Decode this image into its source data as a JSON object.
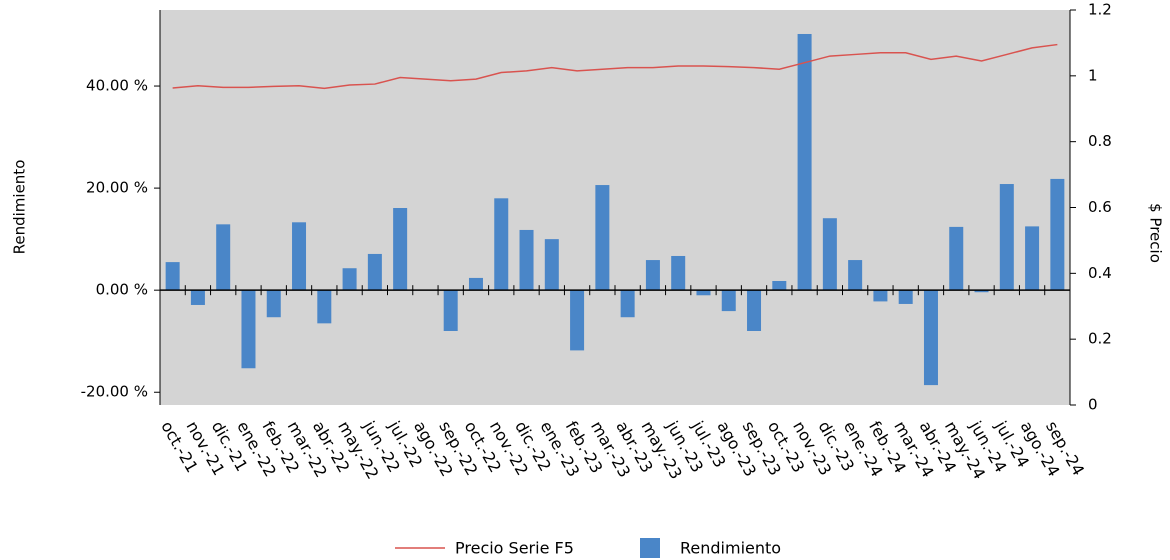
{
  "chart_data": {
    "type": "bar-line",
    "y_label": "Rendimiento",
    "y2_label": "$ Precio",
    "categories": [
      "oct.-21",
      "nov.-21",
      "dic.-21",
      "ene.-22",
      "feb.-22",
      "mar.-22",
      "abr.-22",
      "may.-22",
      "jun.-22",
      "jul.-22",
      "ago.-22",
      "sep.-22",
      "oct.-22",
      "nov.-22",
      "dic.-22",
      "ene.-23",
      "feb.-23",
      "mar.-23",
      "abr.-23",
      "may.-23",
      "jun.-23",
      "jul.-23",
      "ago.-23",
      "sep.-23",
      "oct.-23",
      "nov.-23",
      "dic.-23",
      "ene.-24",
      "feb.-24",
      "mar.-24",
      "abr.-24",
      "may.-24",
      "jun.-24",
      "jul.-24",
      "ago.-24",
      "sep.-24"
    ],
    "series": [
      {
        "name": "Precio Serie F5",
        "type": "line",
        "axis": "y2",
        "color": "#d9534f",
        "values": [
          0.963,
          0.97,
          0.965,
          0.965,
          0.968,
          0.97,
          0.962,
          0.972,
          0.975,
          0.995,
          0.99,
          0.985,
          0.99,
          1.01,
          1.015,
          1.025,
          1.015,
          1.02,
          1.025,
          1.025,
          1.03,
          1.03,
          1.028,
          1.025,
          1.02,
          1.04,
          1.06,
          1.065,
          1.07,
          1.07,
          1.05,
          1.06,
          1.045,
          1.065,
          1.085,
          1.095
        ]
      },
      {
        "name": "Rendimiento",
        "type": "bar",
        "color": "#4a86c8",
        "values": [
          5.5,
          -2.9,
          12.9,
          -15.3,
          -5.3,
          13.3,
          -6.5,
          4.3,
          7.1,
          16.1,
          0,
          -8.0,
          2.4,
          18.0,
          11.8,
          10.0,
          -11.8,
          20.6,
          -5.3,
          5.9,
          6.7,
          -1.0,
          -4.1,
          -8.0,
          1.8,
          50.2,
          14.1,
          5.9,
          -2.2,
          -2.7,
          -18.6,
          12.4,
          -0.4,
          20.8,
          12.5,
          21.8
        ]
      }
    ],
    "ylim": [
      -22.5,
      54.9
    ],
    "yticks": [
      {
        "value": -20,
        "label": "-20.00 %"
      },
      {
        "value": 0,
        "label": "0.00 %"
      },
      {
        "value": 20,
        "label": "20.00 %"
      },
      {
        "value": 40,
        "label": "40.00 %"
      }
    ],
    "y2lim": [
      0,
      1.2
    ],
    "y2ticks": [
      0,
      0.2,
      0.4,
      0.6,
      0.8,
      1,
      1.2
    ]
  }
}
